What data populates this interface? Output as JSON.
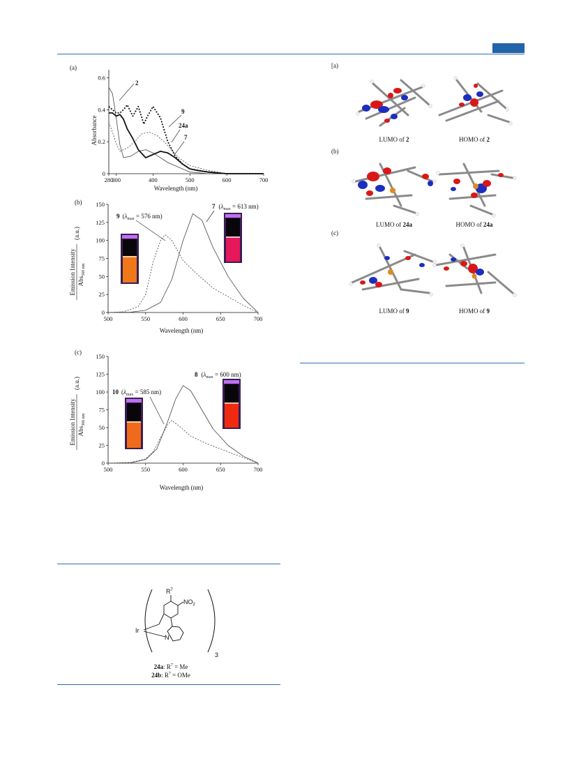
{
  "colors": {
    "accent": "#2a6db0",
    "tab": "#2363a8"
  },
  "panels": {
    "a": {
      "label": "(a)",
      "ylabel": "Absorbance",
      "xlabel": "Wavelength (nm)",
      "xticks": [
        "280",
        "300",
        "400",
        "500",
        "600",
        "700"
      ],
      "yticks": [
        "0",
        "0.2",
        "0.4",
        "0.6"
      ],
      "series_labels": [
        "2",
        "9",
        "24a",
        "7"
      ]
    },
    "b": {
      "label": "(b)",
      "xlabel": "Wavelength (nm)",
      "ylabel_main": "Emission Intensity",
      "ylabel_sub": "Abs",
      "ylabel_sub_index": "560 nm",
      "ylabel_unit": "(a.u.)",
      "xticks": [
        "500",
        "550",
        "600",
        "650",
        "700"
      ],
      "yticks": [
        "0",
        "25",
        "50",
        "75",
        "100",
        "125",
        "150"
      ],
      "solid_compound": "7",
      "solid_lambda": "λ",
      "solid_lambda_sub": "max",
      "solid_value": " = 613 nm)",
      "dashed_compound": "9",
      "dashed_value": " = 576 nm)"
    },
    "c": {
      "label": "(c)",
      "xlabel": "Wavelength (nm)",
      "ylabel_main": "Emission Intensity",
      "ylabel_sub": "Abs",
      "ylabel_sub_index": "366 nm",
      "ylabel_unit": "(a.u.)",
      "xticks": [
        "500",
        "550",
        "600",
        "650",
        "700"
      ],
      "yticks": [
        "0",
        "25",
        "50",
        "75",
        "100",
        "125",
        "150"
      ],
      "solid_compound": "8",
      "solid_value": " = 600 nm)",
      "dashed_compound": "10",
      "dashed_value": " = 585 nm)"
    }
  },
  "orbitals": {
    "a": {
      "label": "[a)",
      "lumo_prefix": "LUMO of ",
      "lumo_cmpd": "2",
      "homo_prefix": "HOMO of ",
      "homo_cmpd": "2"
    },
    "b": {
      "label": "(b)",
      "lumo_prefix": "LUMO of ",
      "lumo_cmpd": "24a",
      "homo_prefix": "HOMO of ",
      "homo_cmpd": "24a"
    },
    "c": {
      "label": "(c)",
      "lumo_prefix": "LUMO of ",
      "lumo_cmpd": "9",
      "homo_prefix": "HOMO of ",
      "homo_cmpd": "9"
    }
  },
  "structure": {
    "r": "R",
    "r_sup": "7",
    "no2": "NO",
    "no2_sub": "2",
    "metal": "Ir",
    "n": "N",
    "count": "3",
    "a_name": "24a",
    "a_text": ": R",
    "a_sup": "7",
    "a_val": " = Me",
    "b_name": "24b",
    "b_text": ": R",
    "b_sup": "7",
    "b_val": " = OMe"
  },
  "chart_data": [
    {
      "type": "line",
      "panel": "a",
      "xlabel": "Wavelength (nm)",
      "ylabel": "Absorbance",
      "xlim": [
        280,
        700
      ],
      "ylim": [
        0,
        0.65
      ],
      "series": [
        {
          "name": "2",
          "style": "dotted-bold",
          "x": [
            280,
            290,
            300,
            310,
            320,
            330,
            345,
            360,
            375,
            385,
            400,
            420,
            440,
            460,
            480,
            500,
            550,
            600,
            700
          ],
          "y": [
            0.42,
            0.4,
            0.38,
            0.38,
            0.4,
            0.43,
            0.36,
            0.42,
            0.31,
            0.36,
            0.42,
            0.35,
            0.2,
            0.11,
            0.06,
            0.03,
            0.01,
            0.0,
            0.0
          ]
        },
        {
          "name": "9",
          "style": "dotted-thin",
          "x": [
            280,
            290,
            300,
            310,
            330,
            350,
            370,
            390,
            410,
            430,
            450,
            470,
            500,
            550,
            600,
            700
          ],
          "y": [
            0.32,
            0.26,
            0.19,
            0.14,
            0.16,
            0.2,
            0.25,
            0.26,
            0.24,
            0.2,
            0.15,
            0.1,
            0.05,
            0.02,
            0.0,
            0.0
          ]
        },
        {
          "name": "24a",
          "style": "thin",
          "x": [
            280,
            290,
            300,
            310,
            320,
            340,
            360,
            380,
            400,
            420,
            440,
            460,
            480,
            500,
            550,
            600,
            700
          ],
          "y": [
            0.54,
            0.5,
            0.35,
            0.18,
            0.1,
            0.11,
            0.14,
            0.15,
            0.13,
            0.1,
            0.07,
            0.05,
            0.03,
            0.01,
            0.0,
            0.0,
            0.0
          ]
        },
        {
          "name": "7",
          "style": "solid-bold",
          "x": [
            280,
            290,
            300,
            310,
            320,
            330,
            345,
            360,
            380,
            400,
            420,
            440,
            460,
            480,
            500,
            520,
            550,
            600,
            700
          ],
          "y": [
            0.38,
            0.38,
            0.36,
            0.37,
            0.34,
            0.28,
            0.22,
            0.15,
            0.1,
            0.12,
            0.14,
            0.13,
            0.1,
            0.06,
            0.03,
            0.02,
            0.01,
            0.0,
            0.0
          ]
        }
      ]
    },
    {
      "type": "line",
      "panel": "b",
      "xlabel": "Wavelength (nm)",
      "xlim": [
        500,
        700
      ],
      "ylim": [
        0,
        150
      ],
      "series": [
        {
          "name": "7",
          "style": "solid",
          "x": [
            500,
            530,
            550,
            570,
            585,
            600,
            613,
            625,
            640,
            660,
            680,
            700
          ],
          "y": [
            0,
            0.5,
            3,
            14,
            46,
            100,
            137,
            128,
            90,
            50,
            20,
            0
          ]
        },
        {
          "name": "9",
          "style": "dotted",
          "x": [
            500,
            520,
            540,
            550,
            560,
            570,
            576,
            585,
            600,
            620,
            640,
            660,
            680,
            700
          ],
          "y": [
            0,
            1,
            8,
            25,
            70,
            100,
            108,
            100,
            72,
            52,
            34,
            22,
            10,
            0
          ]
        }
      ]
    },
    {
      "type": "line",
      "panel": "c",
      "xlabel": "Wavelength (nm)",
      "xlim": [
        500,
        700
      ],
      "ylim": [
        0,
        150
      ],
      "series": [
        {
          "name": "8",
          "style": "solid",
          "x": [
            500,
            530,
            550,
            565,
            580,
            590,
            600,
            610,
            625,
            640,
            660,
            680,
            700
          ],
          "y": [
            0,
            0.5,
            5,
            20,
            60,
            90,
            109,
            102,
            75,
            48,
            25,
            10,
            0
          ]
        },
        {
          "name": "10",
          "style": "dotted",
          "x": [
            500,
            530,
            550,
            560,
            570,
            580,
            585,
            595,
            610,
            630,
            650,
            670,
            700
          ],
          "y": [
            0,
            1,
            6,
            16,
            36,
            55,
            60,
            52,
            38,
            28,
            20,
            12,
            0
          ]
        }
      ]
    }
  ]
}
